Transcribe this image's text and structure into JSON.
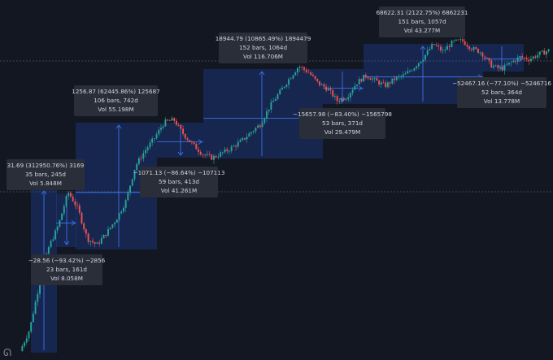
{
  "chart_data": {
    "type": "candlestick",
    "y_scale": "log",
    "colors": {
      "background": "#131722",
      "up": "#26a69a",
      "down": "#ef5350",
      "range_fill": "#2962ff",
      "range_line": "#3d7bff",
      "label_bg": "#2a2e39",
      "label_text": "#d1d4dc",
      "dash_line": "#868993"
    },
    "measurements": [
      {
        "kind": "rise",
        "change": "31.69",
        "percent": "312950.76%",
        "ticks": "3169",
        "bars": "35 bars",
        "duration": "245d",
        "volume": "Vol 5.848M",
        "line1": "31.69 (312950.76%) 3169",
        "line2": "35 bars, 245d",
        "line3": "Vol 5.848M"
      },
      {
        "kind": "fall",
        "change": "-28.56",
        "percent": "-93.42%",
        "ticks": "-2856",
        "bars": "23 bars",
        "duration": "161d",
        "volume": "Vol 8.058M",
        "line1": "−28.56 (−93.42%) −2856",
        "line2": "23 bars, 161d",
        "line3": "Vol 8.058M"
      },
      {
        "kind": "rise",
        "change": "1256.87",
        "percent": "62445.86%",
        "ticks": "125687",
        "bars": "106 bars",
        "duration": "742d",
        "volume": "Vol 55.198M",
        "line1": "1256.87 (62445.86%) 125687",
        "line2": "106 bars, 742d",
        "line3": "Vol 55.198M"
      },
      {
        "kind": "fall",
        "change": "-1071.13",
        "percent": "-86.64%",
        "ticks": "-107113",
        "bars": "59 bars",
        "duration": "413d",
        "volume": "Vol 41.261M",
        "line1": "−1071.13 (−86.64%) −107113",
        "line2": "59 bars, 413d",
        "line3": "Vol 41.261M"
      },
      {
        "kind": "rise",
        "change": "18944.79",
        "percent": "10865.49%",
        "ticks": "1894479",
        "bars": "152 bars",
        "duration": "1064d",
        "volume": "Vol 116.706M",
        "line1": "18944.79 (10865.49%) 1894479",
        "line2": "152 bars, 1064d",
        "line3": "Vol 116.706M"
      },
      {
        "kind": "fall",
        "change": "-15657.98",
        "percent": "-83.40%",
        "ticks": "-1565798",
        "bars": "53 bars",
        "duration": "371d",
        "volume": "Vol 29.479M",
        "line1": "−15657.98 (−83.40%) −1565798",
        "line2": "53 bars, 371d",
        "line3": "Vol 29.479M"
      },
      {
        "kind": "rise",
        "change": "68622.31",
        "percent": "2122.75%",
        "ticks": "6862231",
        "bars": "151 bars",
        "duration": "1057d",
        "volume": "Vol 43.277M",
        "line1": "68622.31 (2122.75%) 6862231",
        "line2": "151 bars, 1057d",
        "line3": "Vol 43.277M"
      },
      {
        "kind": "fall",
        "change": "-52467.16",
        "percent": "-77.10%",
        "ticks": "-5246716",
        "bars": "52 bars",
        "duration": "364d",
        "volume": "Vol 13.778M",
        "line1": "−52467.16 (−77.10%) −5246716",
        "line2": "52 bars, 364d",
        "line3": "Vol 13.778M"
      }
    ],
    "price_path": [
      0.01,
      0.03,
      0.3,
      2,
      6,
      32,
      14,
      3,
      2.2,
      4,
      8,
      20,
      120,
      260,
      500,
      1100,
      1250,
      600,
      350,
      220,
      180,
      230,
      300,
      420,
      650,
      1000,
      2500,
      5000,
      10000,
      19000,
      14000,
      8000,
      6000,
      3300,
      4000,
      8000,
      12000,
      9000,
      7000,
      10000,
      12000,
      18000,
      30000,
      58000,
      40000,
      64000,
      69000,
      47000,
      38000,
      20000,
      16000,
      22000,
      30000,
      27000,
      35000,
      42000
    ]
  }
}
